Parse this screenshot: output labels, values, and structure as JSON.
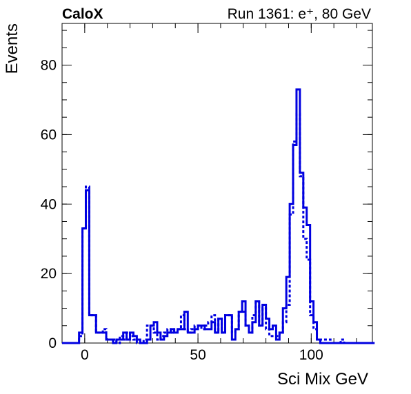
{
  "chart_data": {
    "type": "histogram",
    "title_left": "CaloX",
    "title_right": "Run 1361: e⁺, 80 GeV",
    "xlabel": "Sci Mix GeV",
    "ylabel": "Events",
    "xlim": [
      -10,
      127
    ],
    "ylim": [
      0,
      92
    ],
    "x_ticks": [
      0,
      50,
      100
    ],
    "y_ticks": [
      0,
      20,
      40,
      60,
      80
    ],
    "line_color": "#0000e0",
    "bins": {
      "start": -10,
      "width": 1.5,
      "count": 92
    },
    "series": [
      {
        "style": "solid",
        "values": [
          0,
          0,
          0,
          0,
          0,
          3,
          33,
          44,
          8,
          8,
          3,
          3,
          3,
          1,
          1,
          0,
          1,
          1,
          3,
          1,
          3,
          2,
          1,
          0,
          0,
          1,
          5,
          6,
          3,
          1,
          2,
          3,
          4,
          3,
          4,
          4,
          9,
          3,
          3,
          4,
          5,
          5,
          4,
          4,
          6,
          3,
          7,
          3,
          8,
          8,
          1,
          4,
          9,
          12,
          5,
          3,
          6,
          12,
          5,
          11,
          7,
          4,
          5,
          1,
          3,
          10,
          19,
          40,
          57,
          73,
          49,
          39,
          34,
          12,
          6,
          1,
          0,
          0,
          0,
          0,
          0,
          0,
          0,
          0,
          0,
          0,
          0,
          0,
          0,
          0,
          0,
          0
        ]
      },
      {
        "style": "dotted",
        "values": [
          0,
          0,
          0,
          0,
          0,
          2,
          33,
          45,
          8,
          8,
          3,
          3,
          4,
          1,
          1,
          1,
          0,
          2,
          1,
          3,
          2,
          1,
          0,
          0,
          1,
          5,
          5,
          3,
          1,
          2,
          3,
          4,
          3,
          4,
          4,
          8,
          4,
          3,
          4,
          5,
          5,
          4,
          5,
          6,
          8,
          3,
          7,
          3,
          8,
          8,
          3,
          4,
          9,
          9,
          5,
          3,
          8,
          12,
          5,
          10,
          4,
          2,
          2,
          2,
          3,
          6,
          11,
          37,
          58,
          66,
          48,
          30,
          24,
          8,
          4,
          1,
          1,
          1,
          1,
          0,
          0,
          0,
          1,
          0,
          0,
          0,
          0,
          0,
          0,
          0,
          0,
          0
        ]
      }
    ]
  }
}
